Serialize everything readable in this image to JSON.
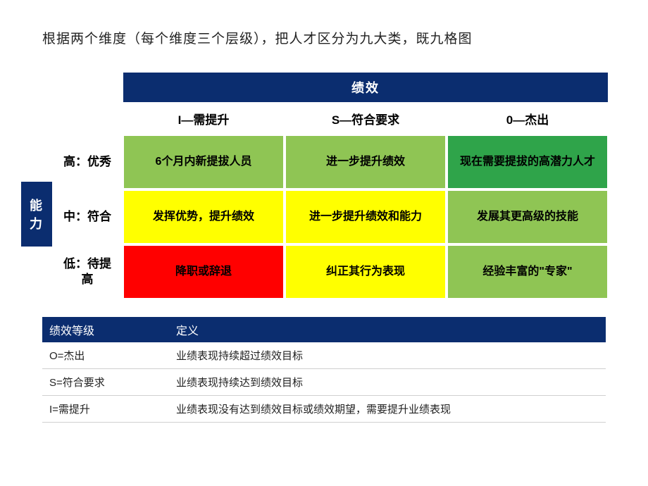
{
  "title": "根据两个维度（每个维度三个层级），把人才区分为九大类，既九格图",
  "axes": {
    "x_label": "绩效",
    "y_label": "能力",
    "x_headers": [
      "I—需提升",
      "S—符合要求",
      "0—杰出"
    ],
    "y_headers": [
      "高：优秀",
      "中：符合",
      "低：待提高"
    ]
  },
  "cells": [
    [
      {
        "text": "6个月内新提拔人员",
        "bg": "#8fc554",
        "fg": "#000000"
      },
      {
        "text": "进一步提升绩效",
        "bg": "#8fc554",
        "fg": "#000000"
      },
      {
        "text": "现在需要提拔的高潜力人才",
        "bg": "#2fa44a",
        "fg": "#000000"
      }
    ],
    [
      {
        "text": "发挥优势，提升绩效",
        "bg": "#ffff00",
        "fg": "#000000"
      },
      {
        "text": "进一步提升绩效和能力",
        "bg": "#ffff00",
        "fg": "#000000"
      },
      {
        "text": "发展其更高级的技能",
        "bg": "#8fc554",
        "fg": "#000000"
      }
    ],
    [
      {
        "text": "降职或辞退",
        "bg": "#ff0000",
        "fg": "#000000"
      },
      {
        "text": "纠正其行为表现",
        "bg": "#ffff00",
        "fg": "#000000"
      },
      {
        "text": "经验丰富的\"专家\"",
        "bg": "#8fc554",
        "fg": "#000000"
      }
    ]
  ],
  "legend": {
    "headers": [
      "绩效等级",
      "定义"
    ],
    "rows": [
      [
        "O=杰出",
        "业绩表现持续超过绩效目标"
      ],
      [
        "S=符合要求",
        "业绩表现持续达到绩效目标"
      ],
      [
        "I=需提升",
        "业绩表现没有达到绩效目标或绩效期望，需要提升业绩表现"
      ]
    ]
  },
  "colors": {
    "header_bg": "#0b2d6f",
    "header_fg": "#ffffff",
    "page_bg": "#ffffff",
    "text": "#222222"
  },
  "typography": {
    "title_fontsize": 19,
    "header_fontsize": 18,
    "cell_fontsize": 16,
    "legend_fontsize": 15
  }
}
